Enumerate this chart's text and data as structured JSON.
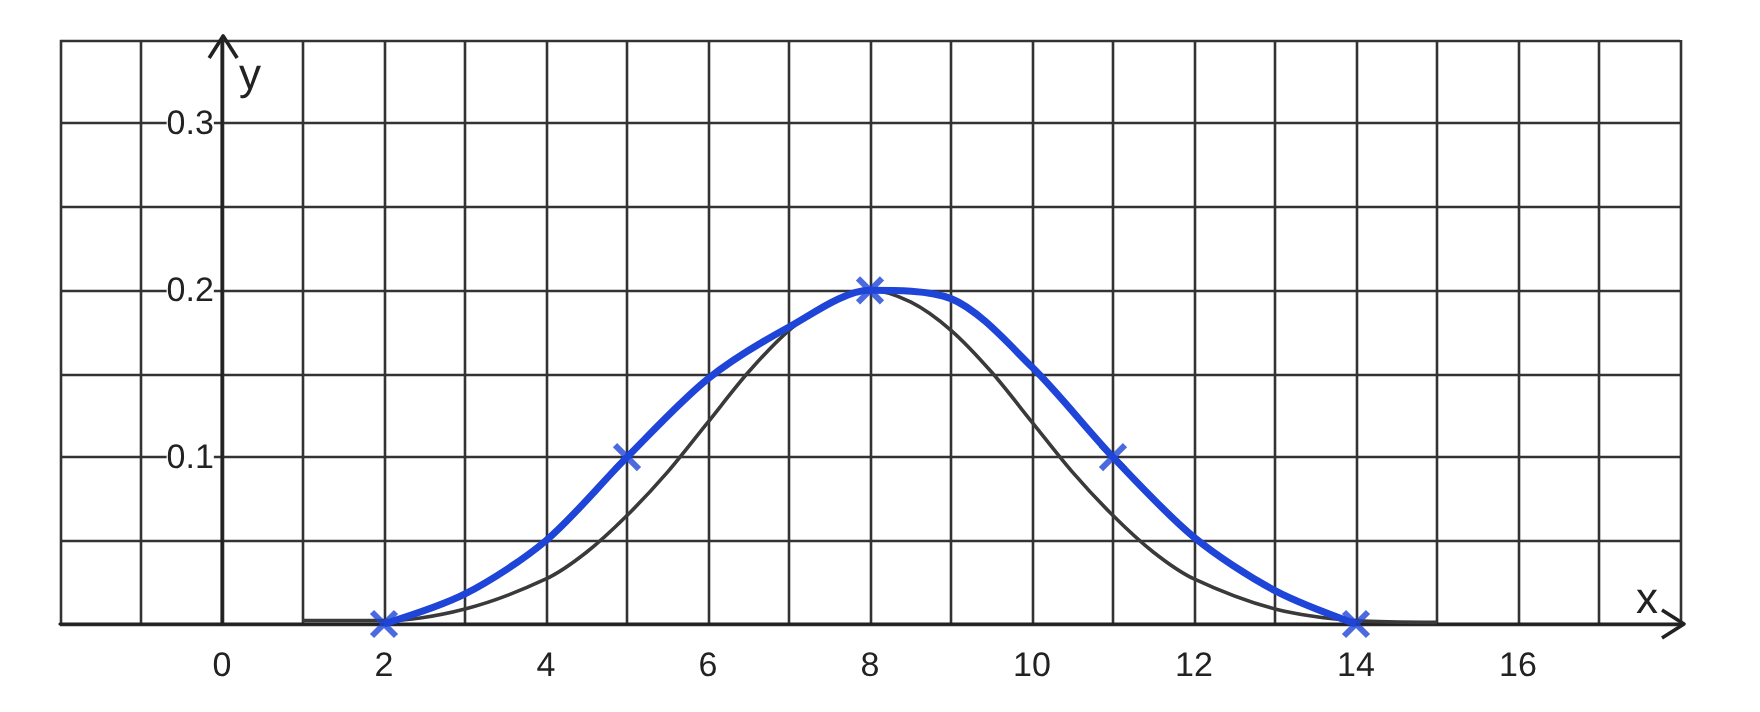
{
  "chart_data": {
    "type": "line",
    "xlabel": "x",
    "ylabel": "y",
    "grid": true,
    "xlim": [
      -2,
      18
    ],
    "ylim": [
      0,
      0.35
    ],
    "xticks": [
      {
        "value": -2,
        "label": null
      },
      {
        "value": -1,
        "label": null
      },
      0,
      {
        "value": 1,
        "label": null
      },
      2,
      {
        "value": 3,
        "label": null
      },
      4,
      {
        "value": 5,
        "label": null
      },
      6,
      {
        "value": 7,
        "label": null
      },
      8,
      {
        "value": 9,
        "label": null
      },
      10,
      {
        "value": 11,
        "label": null
      },
      12,
      {
        "value": 13,
        "label": null
      },
      14,
      {
        "value": 15,
        "label": null
      },
      16,
      {
        "value": 17,
        "label": null
      },
      {
        "value": 18,
        "label": null
      }
    ],
    "yticks": [
      {
        "value": 0,
        "label": null
      },
      {
        "value": 0.05,
        "label": null
      },
      0.1,
      {
        "value": 0.15,
        "label": null
      },
      0.2,
      {
        "value": 0.25,
        "label": null
      },
      0.3,
      {
        "value": 0.35,
        "label": null
      }
    ],
    "series": [
      {
        "type": "line",
        "color": "#3a3a3a",
        "marker": "none",
        "x": [
          1,
          2,
          3,
          4,
          4.5,
          5,
          5.5,
          6,
          6.5,
          7,
          7.5,
          8,
          8.5,
          9,
          9.5,
          10,
          10.5,
          11,
          11.5,
          12,
          13,
          14,
          15
        ],
        "values": [
          0.002,
          0.002,
          0.009,
          0.027,
          0.043,
          0.065,
          0.091,
          0.121,
          0.151,
          0.176,
          0.193,
          0.2,
          0.193,
          0.176,
          0.151,
          0.121,
          0.091,
          0.065,
          0.043,
          0.027,
          0.009,
          0.002,
          0.001
        ]
      },
      {
        "type": "line",
        "color": "#1f45d8",
        "marker": "none",
        "x": [
          2,
          3,
          4,
          5,
          6,
          7,
          8,
          9,
          10,
          11,
          12,
          13,
          14
        ],
        "values": [
          0,
          0.018,
          0.05,
          0.1,
          0.147,
          0.178,
          0.2,
          0.195,
          0.154,
          0.1,
          0.052,
          0.02,
          0
        ]
      },
      {
        "type": "scatter",
        "color": "#1f45d8",
        "marker": "cross",
        "x": [
          2,
          5,
          8,
          11,
          14
        ],
        "values": [
          0,
          0.1,
          0.2,
          0.1,
          0
        ]
      }
    ]
  }
}
